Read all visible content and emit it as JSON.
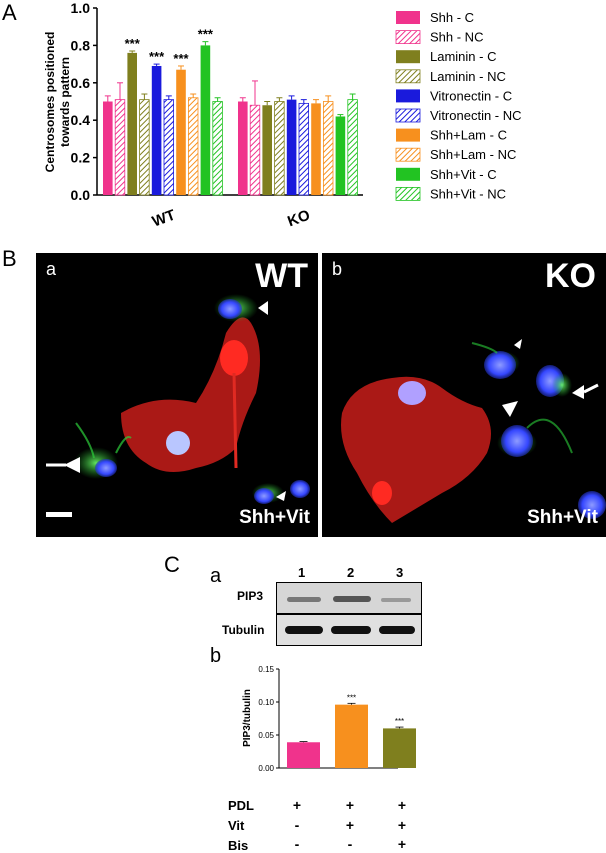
{
  "panels": {
    "A": {
      "letter": "A"
    },
    "B": {
      "letter": "B",
      "left": {
        "sub": "a",
        "genotype": "WT",
        "treatment": "Shh+Vit"
      },
      "right": {
        "sub": "b",
        "genotype": "KO",
        "treatment": "Shh+Vit"
      }
    },
    "C": {
      "letter": "C",
      "sub_a": "a",
      "sub_b": "b",
      "lanes": [
        "1",
        "2",
        "3"
      ],
      "blot_rows": [
        "PIP3",
        "Tubulin"
      ],
      "conditions": [
        {
          "label": "PDL",
          "signs": [
            "+",
            "+",
            "+"
          ]
        },
        {
          "label": "Vit",
          "signs": [
            "-",
            "+",
            "+"
          ]
        },
        {
          "label": "Bis",
          "signs": [
            "-",
            "-",
            "+"
          ]
        }
      ]
    }
  },
  "colors": {
    "shh": "#f0338c",
    "laminin": "#7f7f1e",
    "vitronectin": "#1a1adc",
    "shh_lam": "#f7901e",
    "shh_vit": "#22c322",
    "green_signal": "#2ccf3a",
    "red_signal": "#e0231e",
    "blue_signal": "#3b4bff"
  },
  "chart_data": [
    {
      "type": "bar",
      "ylabel": "Centrosomes positioned towards pattern",
      "ylim": [
        0,
        1.0
      ],
      "yticks": [
        "0.0",
        "0.2",
        "0.4",
        "0.6",
        "0.8",
        "1.0"
      ],
      "categories": [
        "WT",
        "KO"
      ],
      "legend_position": "right",
      "series": [
        {
          "name": "Shh - C",
          "color": "#f0338c",
          "hatch": false,
          "values": [
            0.5,
            0.5
          ],
          "errors": [
            0.03,
            0.02
          ]
        },
        {
          "name": "Shh - NC",
          "color": "#f0338c",
          "hatch": true,
          "values": [
            0.51,
            0.48
          ],
          "errors": [
            0.09,
            0.13
          ]
        },
        {
          "name": "Laminin - C",
          "color": "#7f7f1e",
          "hatch": false,
          "values": [
            0.76,
            0.48
          ],
          "errors": [
            0.01,
            0.02
          ],
          "annotations": [
            "***",
            ""
          ]
        },
        {
          "name": "Laminin - NC",
          "color": "#7f7f1e",
          "hatch": true,
          "values": [
            0.51,
            0.5
          ],
          "errors": [
            0.03,
            0.02
          ]
        },
        {
          "name": "Vitronectin - C",
          "color": "#1a1adc",
          "hatch": false,
          "values": [
            0.69,
            0.51
          ],
          "errors": [
            0.01,
            0.02
          ],
          "annotations": [
            "***",
            ""
          ]
        },
        {
          "name": "Vitronectin - NC",
          "color": "#1a1adc",
          "hatch": true,
          "values": [
            0.51,
            0.49
          ],
          "errors": [
            0.02,
            0.02
          ]
        },
        {
          "name": "Shh+Lam - C",
          "color": "#f7901e",
          "hatch": false,
          "values": [
            0.67,
            0.49
          ],
          "errors": [
            0.02,
            0.02
          ],
          "annotations": [
            "***",
            ""
          ]
        },
        {
          "name": "Shh+Lam - NC",
          "color": "#f7901e",
          "hatch": true,
          "values": [
            0.52,
            0.5
          ],
          "errors": [
            0.02,
            0.03
          ]
        },
        {
          "name": "Shh+Vit - C",
          "color": "#22c322",
          "hatch": false,
          "values": [
            0.8,
            0.42
          ],
          "errors": [
            0.02,
            0.01
          ],
          "annotations": [
            "***",
            ""
          ]
        },
        {
          "name": "Shh+Vit - NC",
          "color": "#22c322",
          "hatch": true,
          "values": [
            0.5,
            0.51
          ],
          "errors": [
            0.02,
            0.03
          ]
        }
      ]
    },
    {
      "type": "bar",
      "ylabel": "PIP3/tubulin",
      "ylim": [
        0,
        0.15
      ],
      "yticks": [
        "0.00",
        "0.05",
        "0.10",
        "0.15"
      ],
      "categories": [
        "1",
        "2",
        "3"
      ],
      "values": [
        0.039,
        0.096,
        0.06
      ],
      "errors": [
        0.001,
        0.002,
        0.002
      ],
      "colors": [
        "#f0338c",
        "#f7901e",
        "#7f7f1e"
      ],
      "annotations": [
        "",
        "***",
        "***"
      ]
    }
  ]
}
